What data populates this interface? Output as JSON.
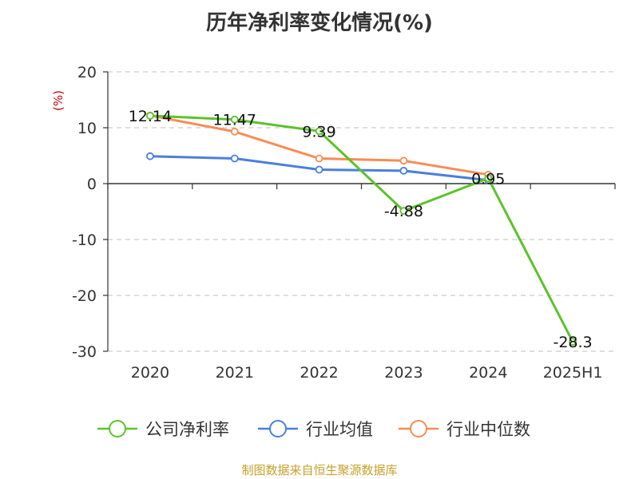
{
  "chart_data": {
    "type": "line",
    "title": "历年净利率变化情况(%)",
    "ylabel": "(%)",
    "categories": [
      "2020",
      "2021",
      "2022",
      "2023",
      "2024",
      "2025H1"
    ],
    "ylim": [
      -30,
      20
    ],
    "yticks": [
      20,
      10,
      0,
      -10,
      -20,
      -30
    ],
    "grid": true,
    "legend_position": "bottom",
    "series": [
      {
        "name": "公司净利率",
        "color": "#5cc32a",
        "values": [
          12.14,
          11.47,
          9.39,
          -4.88,
          0.95,
          -28.3
        ],
        "labels": [
          "12.14",
          "11.47",
          "9.39",
          "-4.88",
          "0.95",
          "-28.3"
        ]
      },
      {
        "name": "行业均值",
        "color": "#4a7fdc",
        "values": [
          4.9,
          4.5,
          2.5,
          2.3,
          0.6,
          null
        ]
      },
      {
        "name": "行业中位数",
        "color": "#f68c55",
        "values": [
          12.2,
          9.3,
          4.5,
          4.1,
          1.6,
          null
        ]
      }
    ]
  },
  "source": "制图数据来自恒生聚源数据库"
}
